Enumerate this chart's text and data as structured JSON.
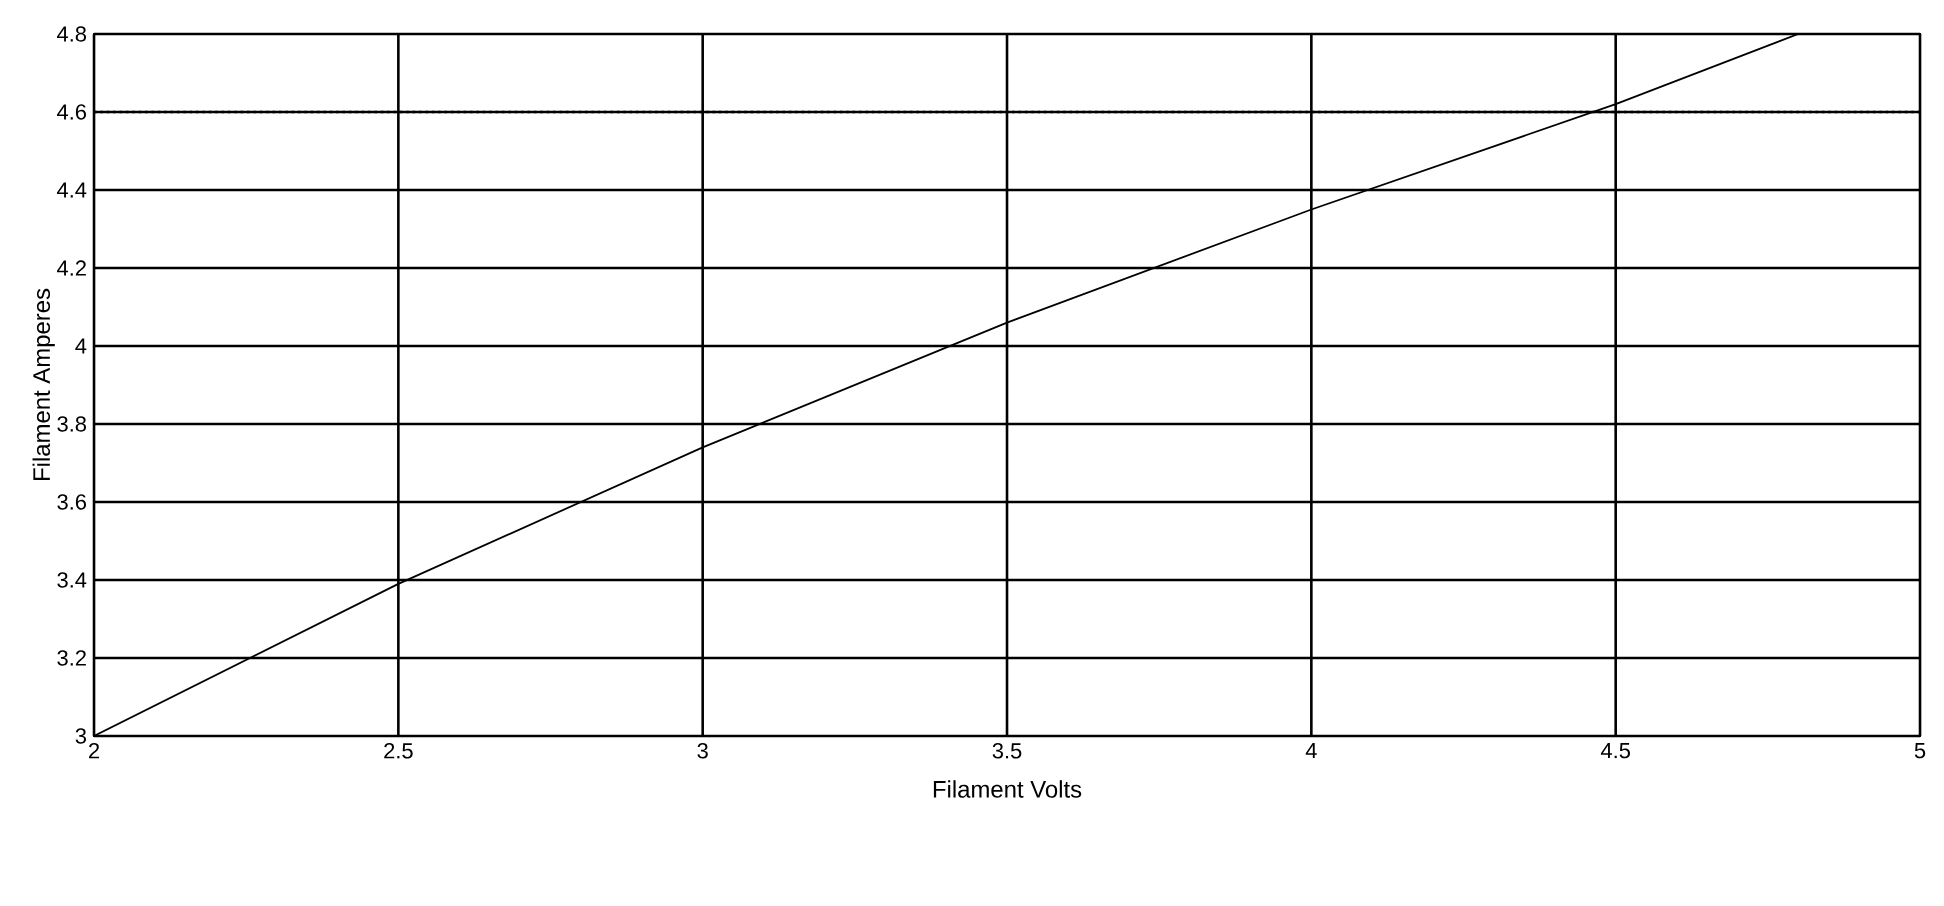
{
  "chart_data": {
    "type": "line",
    "xlabel": "Filament Volts",
    "ylabel": "Filament Amperes",
    "x": [
      2,
      2.5,
      3,
      3.5,
      4,
      4.5,
      4.8
    ],
    "series": [
      {
        "color": "#000000",
        "values": [
          3.0,
          3.39,
          3.74,
          4.06,
          4.35,
          4.62,
          4.8
        ]
      }
    ],
    "xlim": [
      2,
      5
    ],
    "ylim": [
      3,
      4.8
    ],
    "xticks": [
      2,
      2.5,
      3,
      3.5,
      4,
      4.5,
      5
    ],
    "yticks": [
      3,
      3.2,
      3.4,
      3.6,
      3.8,
      4,
      4.2,
      4.4,
      4.6,
      4.8
    ],
    "ref_lines": [
      {
        "axis": "y",
        "value": 4.6,
        "line_style": "dotted",
        "color": "#000000"
      }
    ],
    "grid": true,
    "marker": "none",
    "line_style": "solid"
  }
}
